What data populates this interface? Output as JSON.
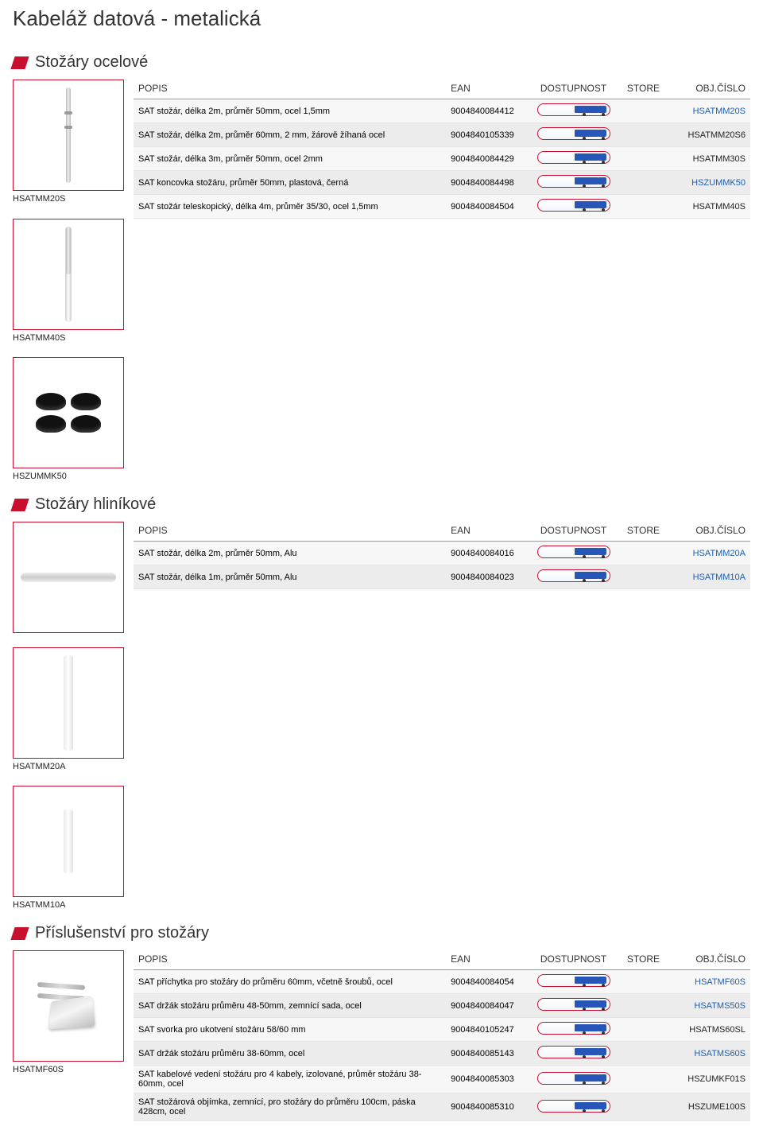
{
  "page_title": "Kabeláž datová - metalická",
  "columns": {
    "popis": "POPIS",
    "ean": "EAN",
    "dostupnost": "DOSTUPNOST",
    "store": "STORE",
    "obj": "OBJ.ČÍSLO"
  },
  "sections": [
    {
      "title": "Stožáry ocelové",
      "main_image_caption": "HSATMM20S",
      "extra_images": [
        "HSATMM40S",
        "HSZUMMK50"
      ],
      "rows": [
        {
          "popis": "SAT stožár, délka 2m, průměr 50mm, ocel 1,5mm",
          "ean": "9004840084412",
          "obj": "HSATMM20S",
          "obj_blue": true
        },
        {
          "popis": "SAT stožár, délka 2m, průměr 60mm, 2 mm, žárově žíhaná ocel",
          "ean": "9004840105339",
          "obj": "HSATMM20S6",
          "obj_blue": false
        },
        {
          "popis": "SAT stožár, délka 3m, průměr 50mm, ocel 2mm",
          "ean": "9004840084429",
          "obj": "HSATMM30S",
          "obj_blue": false
        },
        {
          "popis": "SAT koncovka stožáru, průměr 50mm, plastová, černá",
          "ean": "9004840084498",
          "obj": "HSZUMMK50",
          "obj_blue": true
        },
        {
          "popis": "SAT stožár teleskopický, délka 4m, průměr 35/30, ocel 1,5mm",
          "ean": "9004840084504",
          "obj": "HSATMM40S",
          "obj_blue": false
        }
      ]
    },
    {
      "title": "Stožáry hliníkové",
      "main_image_caption": "",
      "extra_images": [
        "HSATMM20A",
        "HSATMM10A"
      ],
      "rows": [
        {
          "popis": "SAT stožár, délka 2m, průměr 50mm, Alu",
          "ean": "9004840084016",
          "obj": "HSATMM20A",
          "obj_blue": true
        },
        {
          "popis": "SAT stožár, délka 1m, průměr 50mm, Alu",
          "ean": "9004840084023",
          "obj": "HSATMM10A",
          "obj_blue": true
        }
      ]
    },
    {
      "title": "Příslušenství pro stožáry",
      "main_image_caption": "HSATMF60S",
      "extra_images": [],
      "rows": [
        {
          "popis": "SAT příchytka pro stožáry do průměru 60mm, včetně šroubů, ocel",
          "ean": "9004840084054",
          "obj": "HSATMF60S",
          "obj_blue": true
        },
        {
          "popis": "SAT držák stožáru průměru 48-50mm, zemnící sada, ocel",
          "ean": "9004840084047",
          "obj": "HSATMS50S",
          "obj_blue": true
        },
        {
          "popis": "SAT svorka pro ukotvení stožáru 58/60 mm",
          "ean": "9004840105247",
          "obj": "HSATMS60SL",
          "obj_blue": false
        },
        {
          "popis": "SAT držák stožáru průměru 38-60mm, ocel",
          "ean": "9004840085143",
          "obj": "HSATMS60S",
          "obj_blue": true
        },
        {
          "popis": "SAT kabelové vedení stožáru pro 4 kabely, izolované, průměr stožáru 38-60mm, ocel",
          "ean": "9004840085303",
          "obj": "HSZUMKF01S",
          "obj_blue": false
        },
        {
          "popis": "SAT stožárová objímka, zemnící, pro stožáry do průměru 100cm, páska 428cm, ocel",
          "ean": "9004840085310",
          "obj": "HSZUME100S",
          "obj_blue": false
        }
      ]
    }
  ],
  "colors": {
    "accent": "#c8102e",
    "link_blue": "#1b5fb3",
    "row_alt1": "#f7f7f7",
    "row_alt2": "#ececec",
    "truck_blue": "#2556b8"
  }
}
